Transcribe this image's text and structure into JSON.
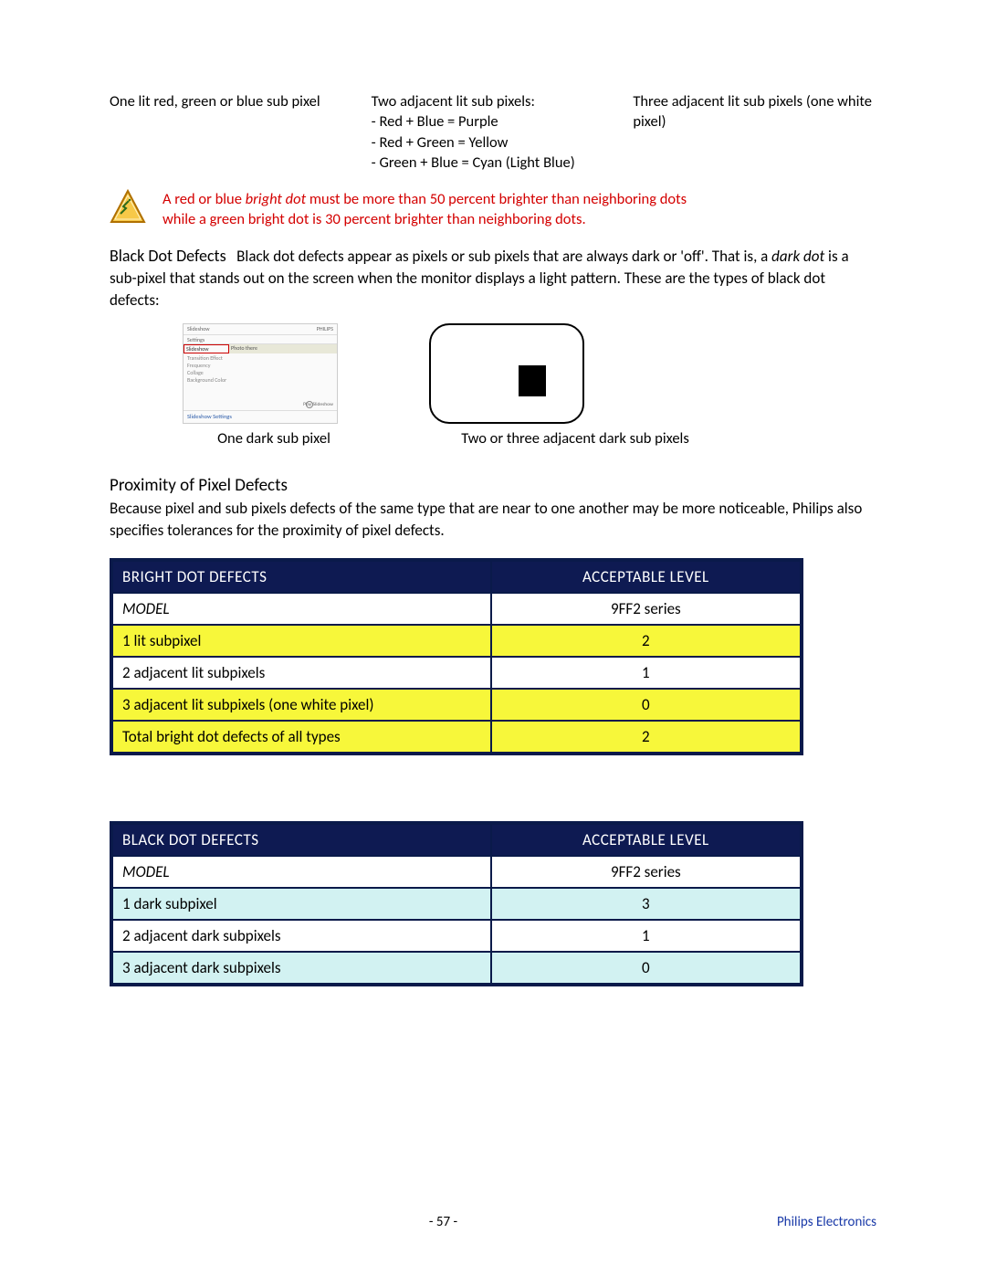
{
  "columns": {
    "left": "One lit red, green or blue sub pixel",
    "mid": "Two adjacent lit sub pixels:\n- Red + Blue = Purple\n- Red + Green = Yellow\n- Green + Blue = Cyan (Light Blue)",
    "right": "Three adjacent lit sub pixels (one white pixel)"
  },
  "note": {
    "line1_a": "A red or blue ",
    "line1_b": "bright dot",
    "line1_c": " must be more than 50 percent brighter than neighboring dots",
    "line2": "while a green bright dot is 30 percent brighter than neighboring dots."
  },
  "blackdot_heading": "Black Dot Defects",
  "blackdot_body_a": "Black dot defects appear as pixels or sub pixels that are always dark or 'off'. That is, a ",
  "blackdot_body_b": "dark dot",
  "blackdot_body_c": " is a sub-pixel that stands out on the screen when the monitor displays a light pattern. These are the types of black dot defects:",
  "fig1": {
    "tab1": "Slideshow",
    "tab1r": "PHILIPS",
    "tab2": "Settings",
    "sel_left": "Slideshow",
    "sel_right": "Photo there",
    "list": [
      "Transition Effect",
      "Frequency",
      "Collage",
      "Background Color"
    ],
    "play": "Play Slideshow",
    "bottom": "Slideshow Settings"
  },
  "caption1": "One dark sub pixel",
  "caption2": "Two or three adjacent dark sub pixels",
  "proximity_h": "Proximity of Pixel Defects",
  "proximity_body": "Because pixel and sub pixels defects of the same type that are near to one another may be more noticeable, Philips also specifies tolerances for the proximity of pixel defects.",
  "table_bright": {
    "h1": "BRIGHT DOT DEFECTS",
    "h2": "ACCEPTABLE LEVEL",
    "model_label": "MODEL",
    "model_value": "9FF2 series",
    "rows": [
      {
        "label": "1 lit subpixel",
        "value": "2",
        "bg": "yellow"
      },
      {
        "label": "2 adjacent lit subpixels",
        "value": "1",
        "bg": "white-row"
      },
      {
        "label": "3 adjacent lit subpixels (one white pixel)",
        "value": "0",
        "bg": "yellow"
      },
      {
        "label": "Total bright dot defects of all types",
        "value": "2",
        "bg": "yellow"
      }
    ]
  },
  "table_black": {
    "h1": "BLACK DOT DEFECTS",
    "h2": "ACCEPTABLE LEVEL",
    "model_label": "MODEL",
    "model_value": "9FF2 series",
    "rows": [
      {
        "label": "1 dark subpixel",
        "value": "3",
        "bg": "cyan"
      },
      {
        "label": "2 adjacent dark subpixels",
        "value": "1",
        "bg": "white-row"
      },
      {
        "label": "3 adjacent dark subpixels",
        "value": "0",
        "bg": "cyan"
      }
    ]
  },
  "footer": {
    "page": "- 57 -",
    "brand": "Philips Electronics"
  }
}
